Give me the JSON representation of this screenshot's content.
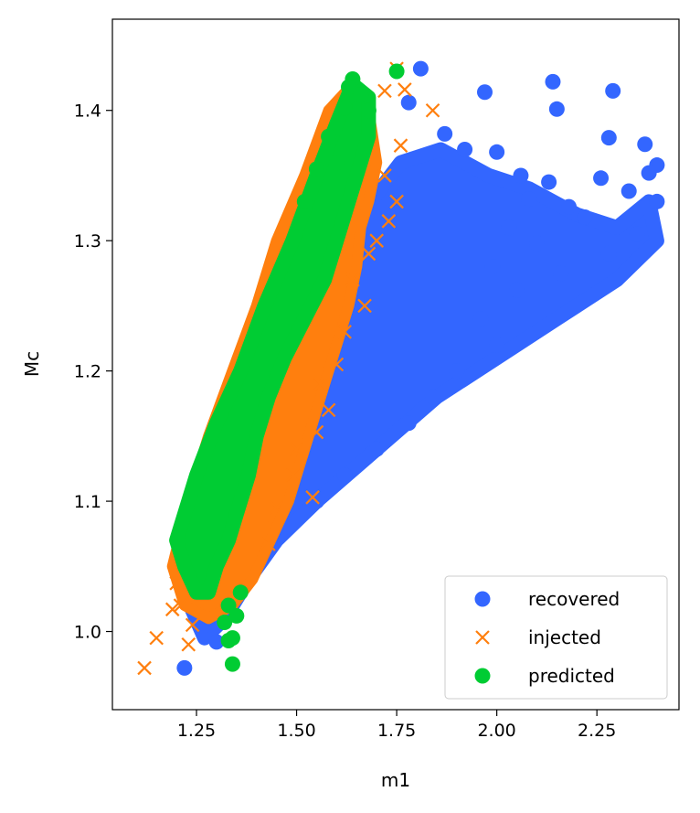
{
  "chart_data": {
    "type": "scatter",
    "title": "",
    "xlabel": "m1",
    "ylabel": "Mc",
    "xlim": [
      1.04,
      2.455
    ],
    "ylim": [
      0.94,
      1.47
    ],
    "grid": false,
    "legend_position": "bottom-right",
    "x_ticks": [
      {
        "value": 1.25,
        "label": "1.25"
      },
      {
        "value": 1.5,
        "label": "1.50"
      },
      {
        "value": 1.75,
        "label": "1.75"
      },
      {
        "value": 2.0,
        "label": "2.00"
      },
      {
        "value": 2.25,
        "label": "2.25"
      }
    ],
    "y_ticks": [
      {
        "value": 1.0,
        "label": "1.0"
      },
      {
        "value": 1.1,
        "label": "1.1"
      },
      {
        "value": 1.2,
        "label": "1.2"
      },
      {
        "value": 1.3,
        "label": "1.3"
      },
      {
        "value": 1.4,
        "label": "1.4"
      }
    ],
    "series": [
      {
        "name": "recovered",
        "marker": "circle",
        "color": "#3366ff",
        "region": [
          [
            1.22,
            1.03
          ],
          [
            1.26,
            1.05
          ],
          [
            1.3,
            1.1
          ],
          [
            1.35,
            1.14
          ],
          [
            1.45,
            1.2
          ],
          [
            1.55,
            1.26
          ],
          [
            1.66,
            1.32
          ],
          [
            1.76,
            1.36
          ],
          [
            1.86,
            1.37
          ],
          [
            1.98,
            1.35
          ],
          [
            2.08,
            1.34
          ],
          [
            2.2,
            1.32
          ],
          [
            2.3,
            1.31
          ],
          [
            2.38,
            1.33
          ],
          [
            2.4,
            1.3
          ],
          [
            2.3,
            1.27
          ],
          [
            2.15,
            1.24
          ],
          [
            2.0,
            1.21
          ],
          [
            1.85,
            1.18
          ],
          [
            1.7,
            1.14
          ],
          [
            1.55,
            1.1
          ],
          [
            1.45,
            1.07
          ],
          [
            1.38,
            1.04
          ],
          [
            1.32,
            1.01
          ],
          [
            1.27,
            0.995
          ]
        ],
        "points": [
          {
            "x": 1.81,
            "y": 1.432
          },
          {
            "x": 2.14,
            "y": 1.422
          },
          {
            "x": 2.29,
            "y": 1.415
          },
          {
            "x": 1.97,
            "y": 1.414
          },
          {
            "x": 2.15,
            "y": 1.401
          },
          {
            "x": 1.78,
            "y": 1.406
          },
          {
            "x": 2.28,
            "y": 1.379
          },
          {
            "x": 2.37,
            "y": 1.374
          },
          {
            "x": 1.87,
            "y": 1.382
          },
          {
            "x": 1.92,
            "y": 1.37
          },
          {
            "x": 2.0,
            "y": 1.368
          },
          {
            "x": 2.4,
            "y": 1.358
          },
          {
            "x": 2.38,
            "y": 1.352
          },
          {
            "x": 2.06,
            "y": 1.35
          },
          {
            "x": 2.13,
            "y": 1.345
          },
          {
            "x": 2.26,
            "y": 1.348
          },
          {
            "x": 2.33,
            "y": 1.338
          },
          {
            "x": 2.4,
            "y": 1.33
          },
          {
            "x": 2.08,
            "y": 1.332
          },
          {
            "x": 2.18,
            "y": 1.326
          },
          {
            "x": 2.22,
            "y": 1.318
          },
          {
            "x": 2.03,
            "y": 1.31
          },
          {
            "x": 2.35,
            "y": 1.305
          },
          {
            "x": 2.1,
            "y": 1.298
          },
          {
            "x": 2.28,
            "y": 1.29
          },
          {
            "x": 1.99,
            "y": 1.28
          },
          {
            "x": 2.16,
            "y": 1.275
          },
          {
            "x": 2.05,
            "y": 1.262
          },
          {
            "x": 1.96,
            "y": 1.24
          },
          {
            "x": 2.0,
            "y": 1.22
          },
          {
            "x": 1.9,
            "y": 1.2
          },
          {
            "x": 1.84,
            "y": 1.18
          },
          {
            "x": 1.78,
            "y": 1.16
          },
          {
            "x": 1.7,
            "y": 1.14
          },
          {
            "x": 1.62,
            "y": 1.12
          },
          {
            "x": 1.55,
            "y": 1.1
          },
          {
            "x": 1.48,
            "y": 1.08
          },
          {
            "x": 1.42,
            "y": 1.06
          },
          {
            "x": 1.36,
            "y": 1.04
          },
          {
            "x": 1.31,
            "y": 1.02
          },
          {
            "x": 1.28,
            "y": 1.005
          },
          {
            "x": 1.3,
            "y": 0.992
          },
          {
            "x": 1.22,
            "y": 0.972
          }
        ]
      },
      {
        "name": "injected",
        "marker": "x",
        "color": "#ff7f0e",
        "region": [
          [
            1.19,
            1.05
          ],
          [
            1.23,
            1.1
          ],
          [
            1.28,
            1.15
          ],
          [
            1.34,
            1.2
          ],
          [
            1.4,
            1.25
          ],
          [
            1.45,
            1.3
          ],
          [
            1.52,
            1.35
          ],
          [
            1.58,
            1.4
          ],
          [
            1.64,
            1.42
          ],
          [
            1.68,
            1.4
          ],
          [
            1.7,
            1.36
          ],
          [
            1.68,
            1.33
          ],
          [
            1.66,
            1.31
          ],
          [
            1.65,
            1.28
          ],
          [
            1.63,
            1.25
          ],
          [
            1.6,
            1.22
          ],
          [
            1.57,
            1.19
          ],
          [
            1.54,
            1.16
          ],
          [
            1.51,
            1.13
          ],
          [
            1.48,
            1.1
          ],
          [
            1.45,
            1.08
          ],
          [
            1.42,
            1.06
          ],
          [
            1.39,
            1.04
          ],
          [
            1.34,
            1.02
          ],
          [
            1.28,
            1.01
          ],
          [
            1.22,
            1.02
          ]
        ],
        "points": [
          {
            "x": 1.75,
            "y": 1.432
          },
          {
            "x": 1.77,
            "y": 1.416
          },
          {
            "x": 1.72,
            "y": 1.415
          },
          {
            "x": 1.84,
            "y": 1.4
          },
          {
            "x": 1.76,
            "y": 1.373
          },
          {
            "x": 1.72,
            "y": 1.35
          },
          {
            "x": 1.75,
            "y": 1.33
          },
          {
            "x": 1.73,
            "y": 1.315
          },
          {
            "x": 1.7,
            "y": 1.3
          },
          {
            "x": 1.68,
            "y": 1.29
          },
          {
            "x": 1.64,
            "y": 1.27
          },
          {
            "x": 1.67,
            "y": 1.25
          },
          {
            "x": 1.62,
            "y": 1.23
          },
          {
            "x": 1.6,
            "y": 1.205
          },
          {
            "x": 1.56,
            "y": 1.19
          },
          {
            "x": 1.58,
            "y": 1.17
          },
          {
            "x": 1.55,
            "y": 1.153
          },
          {
            "x": 1.5,
            "y": 1.14
          },
          {
            "x": 1.49,
            "y": 1.12
          },
          {
            "x": 1.54,
            "y": 1.103
          },
          {
            "x": 1.45,
            "y": 1.095
          },
          {
            "x": 1.44,
            "y": 1.08
          },
          {
            "x": 1.43,
            "y": 1.067
          },
          {
            "x": 1.2,
            "y": 1.037
          },
          {
            "x": 1.21,
            "y": 1.02
          },
          {
            "x": 1.19,
            "y": 1.017
          },
          {
            "x": 1.24,
            "y": 1.005
          },
          {
            "x": 1.23,
            "y": 0.99
          },
          {
            "x": 1.15,
            "y": 0.995
          },
          {
            "x": 1.12,
            "y": 0.972
          }
        ]
      },
      {
        "name": "predicted",
        "marker": "circle",
        "color": "#00cc33",
        "region": [
          [
            1.2,
            1.07
          ],
          [
            1.25,
            1.12
          ],
          [
            1.3,
            1.16
          ],
          [
            1.36,
            1.2
          ],
          [
            1.42,
            1.25
          ],
          [
            1.49,
            1.3
          ],
          [
            1.55,
            1.35
          ],
          [
            1.6,
            1.39
          ],
          [
            1.64,
            1.42
          ],
          [
            1.68,
            1.41
          ],
          [
            1.68,
            1.38
          ],
          [
            1.66,
            1.36
          ],
          [
            1.63,
            1.33
          ],
          [
            1.6,
            1.3
          ],
          [
            1.57,
            1.27
          ],
          [
            1.52,
            1.24
          ],
          [
            1.47,
            1.21
          ],
          [
            1.43,
            1.18
          ],
          [
            1.4,
            1.15
          ],
          [
            1.38,
            1.12
          ],
          [
            1.35,
            1.09
          ],
          [
            1.33,
            1.07
          ],
          [
            1.3,
            1.05
          ],
          [
            1.28,
            1.03
          ],
          [
            1.25,
            1.03
          ],
          [
            1.22,
            1.05
          ]
        ],
        "points": [
          {
            "x": 1.75,
            "y": 1.43
          },
          {
            "x": 1.64,
            "y": 1.424
          },
          {
            "x": 1.63,
            "y": 1.418
          },
          {
            "x": 1.66,
            "y": 1.412
          },
          {
            "x": 1.68,
            "y": 1.4
          },
          {
            "x": 1.62,
            "y": 1.402
          },
          {
            "x": 1.58,
            "y": 1.38
          },
          {
            "x": 1.6,
            "y": 1.36
          },
          {
            "x": 1.55,
            "y": 1.355
          },
          {
            "x": 1.52,
            "y": 1.33
          },
          {
            "x": 1.36,
            "y": 1.03
          },
          {
            "x": 1.33,
            "y": 1.02
          },
          {
            "x": 1.35,
            "y": 1.012
          },
          {
            "x": 1.32,
            "y": 1.007
          },
          {
            "x": 1.34,
            "y": 0.995
          },
          {
            "x": 1.33,
            "y": 0.993
          },
          {
            "x": 1.34,
            "y": 0.975
          }
        ]
      }
    ]
  }
}
